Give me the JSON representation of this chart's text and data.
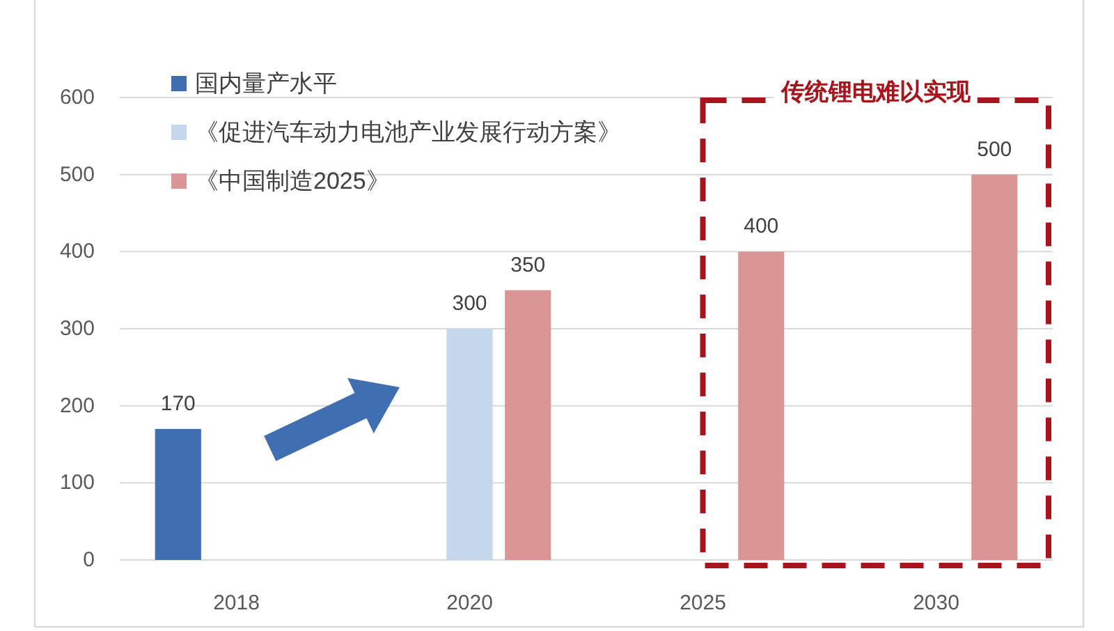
{
  "chart_data": {
    "type": "bar",
    "categories": [
      "2018",
      "2020",
      "2025",
      "2030"
    ],
    "series": [
      {
        "name": "国内量产水平",
        "color": "#3f6fb0",
        "values": [
          170,
          null,
          null,
          null
        ]
      },
      {
        "name": "《促进汽车动力电池产业发展行动方案》",
        "color": "#c5d7ed",
        "values": [
          null,
          300,
          null,
          null
        ]
      },
      {
        "name": "《中国制造2025》",
        "color": "#d99694",
        "values": [
          null,
          350,
          400,
          500
        ]
      }
    ],
    "ylim": [
      0,
      600
    ],
    "yticks": [
      0,
      100,
      200,
      300,
      400,
      500,
      600
    ],
    "grid": "y",
    "legend": "top left",
    "data_labels": true,
    "annotations": [
      "传统锂电难以实现"
    ]
  }
}
